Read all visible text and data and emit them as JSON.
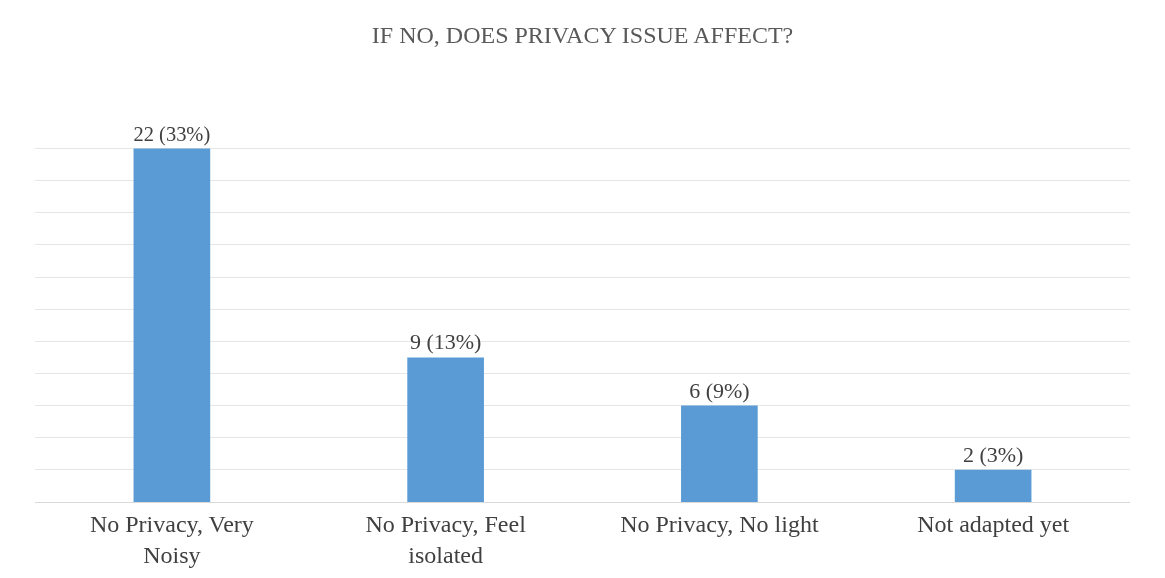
{
  "chart_data": {
    "type": "bar",
    "title": "IF NO, DOES PRIVACY ISSUE AFFECT?",
    "categories": [
      "No Privacy, Very Noisy",
      "No Privacy, Feel isolated",
      "No Privacy, No light",
      "Not adapted yet"
    ],
    "values": [
      22,
      9,
      6,
      2
    ],
    "value_labels": [
      "22 (33%)",
      "9 (13%)",
      "6 (9%)",
      "2 (3%)"
    ],
    "color": "#5b9bd5",
    "grid": "y",
    "tick_labels": "x"
  }
}
